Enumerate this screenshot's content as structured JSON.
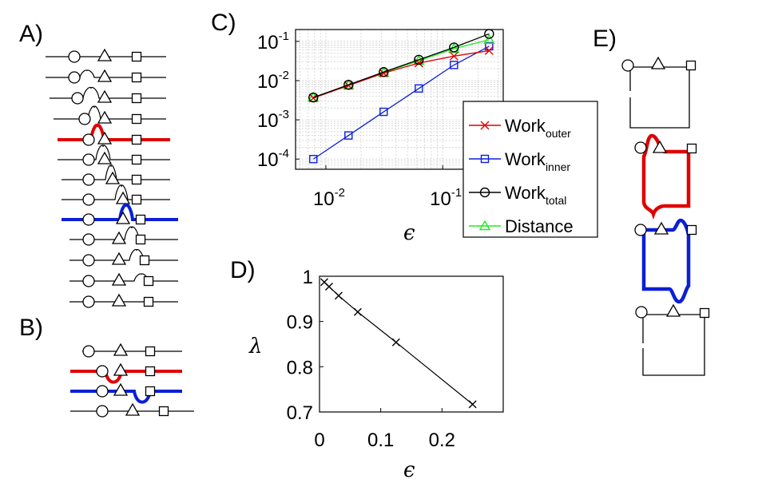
{
  "panels": {
    "A": "A)",
    "B": "B)",
    "C": "C)",
    "D": "D)",
    "E": "E)"
  },
  "colors": {
    "outer": "#e00000",
    "inner": "#0a1fd6",
    "total": "#000000",
    "distance": "#22e822",
    "grid": "#cfcfcf"
  },
  "chart_data": [
    {
      "id": "C",
      "type": "line",
      "scale": "log-log",
      "xlabel": "ϵ",
      "ylabel": "",
      "xlim": [
        0.0055,
        0.33
      ],
      "ylim": [
        5.5e-05,
        0.2
      ],
      "xticks": [
        {
          "value": 0.01,
          "base": "10",
          "exp": "-2"
        },
        {
          "value": 0.1,
          "base": "10",
          "exp": "-1"
        }
      ],
      "yticks": [
        {
          "value": 0.1,
          "base": "10",
          "exp": "-1"
        },
        {
          "value": 0.01,
          "base": "10",
          "exp": "-2"
        },
        {
          "value": 0.001,
          "base": "10",
          "exp": "-3"
        },
        {
          "value": 0.0001,
          "base": "10",
          "exp": "-4"
        }
      ],
      "x": [
        0.0078125,
        0.015625,
        0.03125,
        0.0625,
        0.125,
        0.25
      ],
      "series": [
        {
          "name": "Work",
          "sub": "outer",
          "color_key": "outer",
          "marker": "x",
          "values": [
            0.0036,
            0.0075,
            0.0155,
            0.028,
            0.042,
            0.058
          ]
        },
        {
          "name": "Work",
          "sub": "inner",
          "color_key": "inner",
          "marker": "square",
          "values": [
            0.0001,
            0.0004,
            0.0016,
            0.0063,
            0.025,
            0.075
          ]
        },
        {
          "name": "Work",
          "sub": "total",
          "color_key": "total",
          "marker": "circle",
          "values": [
            0.0037,
            0.0078,
            0.0165,
            0.034,
            0.07,
            0.155
          ]
        },
        {
          "name": "Distance",
          "sub": "",
          "color_key": "distance",
          "marker": "triangle",
          "values": [
            0.0037,
            0.0077,
            0.016,
            0.032,
            0.065,
            0.11
          ]
        }
      ]
    },
    {
      "id": "D",
      "type": "line",
      "scale": "linear",
      "xlabel": "ϵ",
      "ylabel": "λ",
      "xlim": [
        0,
        0.3
      ],
      "ylim": [
        0.7,
        1.0
      ],
      "xticks": [
        {
          "value": 0,
          "label": "0"
        },
        {
          "value": 0.1,
          "label": "0.1"
        },
        {
          "value": 0.2,
          "label": "0.2"
        }
      ],
      "yticks": [
        {
          "value": 1.0,
          "label": "1"
        },
        {
          "value": 0.9,
          "label": "0.9"
        },
        {
          "value": 0.8,
          "label": "0.8"
        },
        {
          "value": 0.7,
          "label": "0.7"
        }
      ],
      "x": [
        0.0078125,
        0.015625,
        0.03125,
        0.0625,
        0.125,
        0.25
      ],
      "series": [
        {
          "name": "lambda",
          "marker": "x",
          "values": [
            0.987,
            0.977,
            0.957,
            0.921,
            0.854,
            0.717
          ]
        }
      ]
    }
  ]
}
